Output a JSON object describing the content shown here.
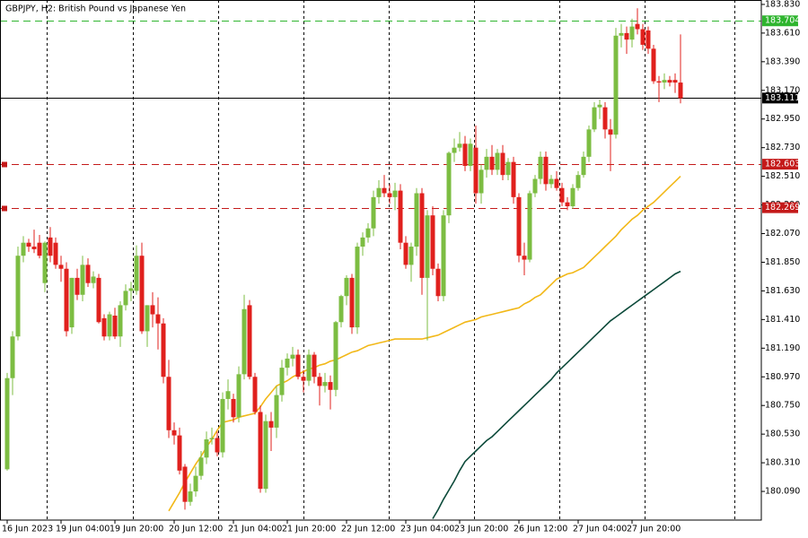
{
  "chart_data": {
    "type": "candlestick",
    "title": "GBPJPY, H2:  British Pound vs Japanese Yen",
    "up_color": "#7cbd42",
    "down_color": "#e0201d",
    "ylim": [
      179.87,
      183.864
    ],
    "yticks": [
      {
        "value": 183.83,
        "label": "183.830"
      },
      {
        "value": 183.61,
        "label": "183.610"
      },
      {
        "value": 183.39,
        "label": "183.390"
      },
      {
        "value": 183.17,
        "label": "183.170"
      },
      {
        "value": 182.95,
        "label": "182.950"
      },
      {
        "value": 182.73,
        "label": "182.730"
      },
      {
        "value": 182.51,
        "label": "182.510"
      },
      {
        "value": 182.29,
        "label": "182.290"
      },
      {
        "value": 182.07,
        "label": "182.070"
      },
      {
        "value": 181.85,
        "label": "181.850"
      },
      {
        "value": 181.63,
        "label": "181.630"
      },
      {
        "value": 181.41,
        "label": "181.410"
      },
      {
        "value": 181.19,
        "label": "181.190"
      },
      {
        "value": 180.97,
        "label": "180.970"
      },
      {
        "value": 180.75,
        "label": "180.750"
      },
      {
        "value": 180.53,
        "label": "180.530"
      },
      {
        "value": 180.31,
        "label": "180.310"
      },
      {
        "value": 180.09,
        "label": "180.090"
      }
    ],
    "levels": [
      {
        "value": 183.704,
        "color": "#2fb52f",
        "style": "dashed"
      },
      {
        "value": 183.111,
        "color": "#000000",
        "style": "solid"
      },
      {
        "value": 182.603,
        "color": "#c41a1a",
        "style": "dashed"
      },
      {
        "value": 182.269,
        "color": "#c41a1a",
        "style": "dashed"
      }
    ],
    "categories": [
      "16 Jun 2023",
      null,
      null,
      null,
      null,
      null,
      null,
      null,
      null,
      null,
      "19 Jun 04:00",
      null,
      null,
      null,
      null,
      null,
      null,
      null,
      null,
      null,
      "19 Jun 20:00",
      null,
      null,
      null,
      null,
      null,
      null,
      null,
      null,
      null,
      null,
      "20 Jun 12:00",
      null,
      null,
      null,
      null,
      null,
      null,
      null,
      null,
      null,
      null,
      "21 Jun 04:00",
      null,
      null,
      null,
      null,
      null,
      null,
      null,
      null,
      null,
      "21 Jun 20:00",
      null,
      null,
      null,
      null,
      null,
      null,
      null,
      null,
      null,
      null,
      "22 Jun 12:00",
      null,
      null,
      null,
      null,
      null,
      null,
      null,
      null,
      null,
      null,
      "23 Jun 04:00",
      null,
      null,
      null,
      null,
      null,
      null,
      null,
      null,
      null,
      "23 Jun 20:00",
      null,
      null,
      null,
      null,
      null,
      null,
      null,
      null,
      null,
      null,
      "26 Jun 12:00",
      null,
      null,
      null,
      null,
      null,
      null,
      null,
      null,
      null,
      null,
      "27 Jun 04:00",
      null,
      null,
      null,
      null,
      null,
      null,
      null,
      null,
      null,
      "27 Jun 20:00",
      null,
      null,
      null,
      null,
      null,
      null,
      null,
      null,
      null
    ],
    "candles": [
      [
        180.26,
        181.0,
        180.25,
        180.96
      ],
      [
        180.96,
        181.32,
        180.83,
        181.28
      ],
      [
        181.28,
        181.97,
        181.25,
        181.9
      ],
      [
        181.9,
        182.05,
        181.85,
        182.0
      ],
      [
        182.0,
        182.03,
        181.93,
        181.97
      ],
      [
        181.97,
        182.1,
        181.92,
        181.95
      ],
      [
        182.0,
        182.06,
        181.88,
        181.9
      ],
      [
        181.69,
        182.01,
        181.62,
        182.0
      ],
      [
        182.04,
        182.12,
        181.85,
        181.9
      ],
      [
        182.0,
        182.04,
        181.8,
        181.83
      ],
      [
        181.83,
        181.9,
        181.7,
        181.8
      ],
      [
        181.8,
        181.85,
        181.28,
        181.32
      ],
      [
        181.35,
        181.73,
        181.3,
        181.73
      ],
      [
        181.73,
        181.8,
        181.56,
        181.6
      ],
      [
        181.6,
        181.9,
        181.55,
        181.83
      ],
      [
        181.83,
        181.88,
        181.66,
        181.69
      ],
      [
        181.69,
        181.78,
        181.65,
        181.74
      ],
      [
        181.73,
        181.76,
        181.38,
        181.39
      ],
      [
        181.42,
        181.45,
        181.25,
        181.28
      ],
      [
        181.28,
        181.47,
        181.25,
        181.45
      ],
      [
        181.44,
        181.5,
        181.26,
        181.28
      ],
      [
        181.28,
        181.55,
        181.2,
        181.52
      ],
      [
        181.52,
        181.68,
        181.48,
        181.63
      ],
      [
        181.63,
        181.7,
        181.55,
        181.65
      ],
      [
        181.63,
        181.98,
        181.6,
        181.9
      ],
      [
        181.9,
        182.0,
        181.3,
        181.32
      ],
      [
        181.32,
        181.52,
        181.2,
        181.52
      ],
      [
        181.52,
        181.62,
        181.35,
        181.45
      ],
      [
        181.45,
        181.58,
        181.18,
        181.38
      ],
      [
        181.38,
        181.42,
        180.92,
        180.97
      ],
      [
        180.97,
        181.1,
        180.5,
        180.56
      ],
      [
        180.56,
        180.62,
        180.45,
        180.52
      ],
      [
        180.52,
        180.58,
        180.22,
        180.25
      ],
      [
        180.28,
        180.3,
        179.95,
        180.01
      ],
      [
        180.01,
        180.15,
        179.98,
        180.09
      ],
      [
        180.09,
        180.28,
        180.05,
        180.21
      ],
      [
        180.21,
        180.4,
        180.18,
        180.35
      ],
      [
        180.35,
        180.55,
        180.3,
        180.49
      ],
      [
        180.49,
        180.58,
        180.45,
        180.5
      ],
      [
        180.5,
        180.55,
        180.36,
        180.39
      ],
      [
        180.39,
        180.85,
        180.35,
        180.8
      ],
      [
        180.8,
        180.95,
        180.72,
        180.86
      ],
      [
        180.8,
        180.84,
        180.62,
        180.66
      ],
      [
        180.66,
        181.05,
        180.62,
        180.99
      ],
      [
        180.99,
        181.6,
        180.95,
        181.49
      ],
      [
        181.52,
        181.56,
        180.95,
        180.97
      ],
      [
        180.97,
        181.0,
        180.68,
        180.7
      ],
      [
        180.7,
        180.75,
        180.08,
        180.11
      ],
      [
        180.11,
        180.68,
        180.08,
        180.63
      ],
      [
        180.63,
        180.7,
        180.4,
        180.58
      ],
      [
        180.58,
        180.9,
        180.5,
        180.83
      ],
      [
        180.83,
        181.1,
        180.78,
        181.04
      ],
      [
        181.04,
        181.15,
        180.98,
        181.11
      ],
      [
        181.11,
        181.2,
        181.05,
        181.14
      ],
      [
        181.14,
        181.18,
        180.95,
        180.97
      ],
      [
        180.97,
        181.02,
        180.85,
        180.94
      ],
      [
        180.94,
        181.18,
        180.9,
        181.14
      ],
      [
        181.14,
        181.16,
        180.92,
        180.97
      ],
      [
        180.97,
        181.0,
        180.75,
        180.9
      ],
      [
        180.9,
        181.0,
        180.85,
        180.93
      ],
      [
        180.93,
        180.98,
        180.72,
        180.87
      ],
      [
        180.87,
        181.4,
        180.82,
        181.39
      ],
      [
        181.39,
        181.6,
        181.35,
        181.59
      ],
      [
        181.59,
        181.75,
        181.52,
        181.73
      ],
      [
        181.73,
        181.76,
        181.3,
        181.35
      ],
      [
        181.35,
        182.0,
        181.3,
        181.97
      ],
      [
        181.97,
        182.08,
        181.9,
        182.04
      ],
      [
        182.04,
        182.15,
        182.0,
        182.11
      ],
      [
        182.11,
        182.4,
        182.05,
        182.35
      ],
      [
        182.35,
        182.48,
        182.3,
        182.42
      ],
      [
        182.42,
        182.52,
        182.35,
        182.38
      ],
      [
        182.38,
        182.45,
        182.3,
        182.35
      ],
      [
        182.35,
        182.46,
        182.25,
        182.4
      ],
      [
        182.4,
        182.45,
        181.95,
        182.0
      ],
      [
        182.0,
        182.05,
        181.8,
        181.83
      ],
      [
        181.83,
        182.0,
        181.7,
        181.97
      ],
      [
        181.97,
        182.42,
        181.9,
        182.38
      ],
      [
        182.38,
        182.42,
        181.6,
        181.73
      ],
      [
        181.73,
        182.25,
        181.25,
        182.21
      ],
      [
        182.21,
        182.28,
        181.75,
        181.8
      ],
      [
        181.8,
        181.84,
        181.55,
        181.59
      ],
      [
        181.59,
        182.25,
        181.55,
        182.21
      ],
      [
        182.21,
        182.7,
        182.15,
        182.69
      ],
      [
        182.69,
        182.8,
        182.62,
        182.73
      ],
      [
        182.73,
        182.85,
        182.7,
        182.76
      ],
      [
        182.76,
        182.82,
        182.55,
        182.59
      ],
      [
        182.59,
        182.8,
        182.55,
        182.76
      ],
      [
        182.73,
        182.9,
        182.3,
        182.38
      ],
      [
        182.38,
        182.6,
        182.3,
        182.56
      ],
      [
        182.56,
        182.72,
        182.5,
        182.66
      ],
      [
        182.66,
        182.75,
        182.52,
        182.56
      ],
      [
        182.56,
        182.72,
        182.52,
        182.69
      ],
      [
        182.69,
        182.75,
        182.48,
        182.52
      ],
      [
        182.52,
        182.65,
        182.48,
        182.62
      ],
      [
        182.62,
        182.66,
        182.3,
        182.35
      ],
      [
        182.35,
        182.38,
        181.85,
        181.9
      ],
      [
        181.9,
        182.0,
        181.75,
        181.87
      ],
      [
        181.87,
        182.4,
        181.85,
        182.38
      ],
      [
        182.38,
        182.52,
        182.35,
        182.49
      ],
      [
        182.49,
        182.7,
        182.45,
        182.66
      ],
      [
        182.66,
        182.7,
        182.4,
        182.45
      ],
      [
        182.45,
        182.52,
        182.42,
        182.49
      ],
      [
        182.49,
        182.55,
        182.4,
        182.42
      ],
      [
        182.42,
        182.46,
        182.28,
        182.31
      ],
      [
        182.31,
        182.35,
        182.25,
        182.28
      ],
      [
        182.28,
        182.45,
        182.26,
        182.42
      ],
      [
        182.42,
        182.55,
        182.4,
        182.52
      ],
      [
        182.52,
        182.7,
        182.5,
        182.66
      ],
      [
        182.66,
        182.9,
        182.62,
        182.87
      ],
      [
        182.87,
        183.08,
        182.85,
        183.04
      ],
      [
        183.04,
        183.1,
        182.95,
        183.06
      ],
      [
        183.04,
        183.08,
        182.8,
        182.87
      ],
      [
        182.87,
        182.95,
        182.55,
        182.83
      ],
      [
        182.83,
        183.65,
        182.8,
        183.59
      ],
      [
        183.59,
        183.68,
        183.5,
        183.61
      ],
      [
        183.61,
        183.66,
        183.45,
        183.56
      ],
      [
        183.56,
        183.72,
        183.5,
        183.66
      ],
      [
        183.68,
        183.8,
        183.6,
        183.64
      ],
      [
        183.64,
        183.68,
        183.48,
        183.52
      ],
      [
        183.63,
        183.66,
        183.45,
        183.49
      ],
      [
        183.49,
        183.52,
        183.22,
        183.24
      ],
      [
        183.24,
        183.28,
        183.08,
        183.23
      ],
      [
        183.23,
        183.3,
        183.18,
        183.25
      ],
      [
        183.25,
        183.28,
        183.2,
        183.23
      ],
      [
        183.25,
        183.3,
        183.15,
        183.23
      ],
      [
        183.23,
        183.6,
        183.07,
        183.11
      ]
    ],
    "moving_averages": [
      {
        "color": "#f2b818",
        "values": [
          null,
          null,
          null,
          null,
          null,
          null,
          null,
          null,
          null,
          null,
          null,
          null,
          null,
          null,
          null,
          null,
          null,
          null,
          null,
          null,
          null,
          null,
          null,
          null,
          null,
          null,
          null,
          null,
          null,
          null,
          179.94,
          180.01,
          180.08,
          180.16,
          180.23,
          180.3,
          180.36,
          180.43,
          180.49,
          180.56,
          180.62,
          180.63,
          180.64,
          180.66,
          180.67,
          180.68,
          180.69,
          180.74,
          180.8,
          180.85,
          180.9,
          180.92,
          180.94,
          180.97,
          180.99,
          181.01,
          181.03,
          181.04,
          181.06,
          181.07,
          181.09,
          181.1,
          181.12,
          181.14,
          181.16,
          181.17,
          181.19,
          181.21,
          181.22,
          181.23,
          181.24,
          181.25,
          181.26,
          181.26,
          181.26,
          181.26,
          181.26,
          181.26,
          181.27,
          181.28,
          181.29,
          181.31,
          181.33,
          181.35,
          181.37,
          181.39,
          181.4,
          181.41,
          181.43,
          181.44,
          181.45,
          181.46,
          181.47,
          181.48,
          181.49,
          181.5,
          181.53,
          181.55,
          181.58,
          181.6,
          181.64,
          181.68,
          181.72,
          181.74,
          181.76,
          181.77,
          181.79,
          181.81,
          181.85,
          181.89,
          181.93,
          181.97,
          182.01,
          182.05,
          182.1,
          182.14,
          182.18,
          182.21,
          182.25,
          182.28,
          182.31,
          182.35,
          182.39,
          182.43,
          182.47,
          182.51
        ]
      },
      {
        "color": "#0c4a3a",
        "values": [
          null,
          null,
          null,
          null,
          null,
          null,
          null,
          null,
          null,
          null,
          null,
          null,
          null,
          null,
          null,
          null,
          null,
          null,
          null,
          null,
          null,
          null,
          null,
          null,
          null,
          null,
          null,
          null,
          null,
          null,
          null,
          null,
          null,
          null,
          null,
          null,
          null,
          null,
          null,
          null,
          null,
          null,
          null,
          null,
          null,
          null,
          null,
          null,
          null,
          null,
          null,
          null,
          null,
          null,
          null,
          null,
          null,
          null,
          null,
          null,
          null,
          null,
          null,
          null,
          null,
          null,
          null,
          null,
          null,
          null,
          null,
          null,
          null,
          null,
          null,
          null,
          null,
          null,
          null,
          179.88,
          179.95,
          180.03,
          180.1,
          180.17,
          180.25,
          180.32,
          180.36,
          180.4,
          180.44,
          180.48,
          180.51,
          180.55,
          180.59,
          180.63,
          180.67,
          180.71,
          180.75,
          180.79,
          180.83,
          180.87,
          180.91,
          180.95,
          181.0,
          181.04,
          181.08,
          181.12,
          181.16,
          181.2,
          181.24,
          181.28,
          181.32,
          181.36,
          181.4,
          181.43,
          181.46,
          181.49,
          181.52,
          181.55,
          181.58,
          181.61,
          181.64,
          181.67,
          181.7,
          181.73,
          181.76,
          181.78
        ]
      }
    ]
  }
}
